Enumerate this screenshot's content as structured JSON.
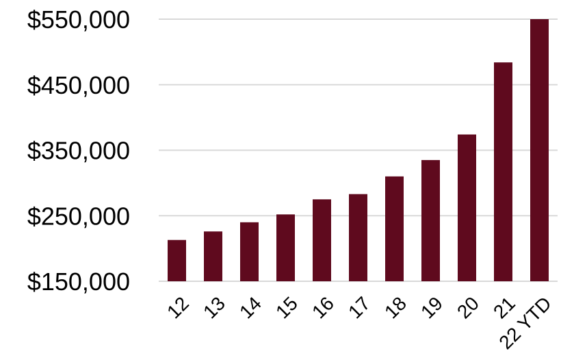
{
  "chart_data": {
    "type": "bar",
    "title": "",
    "xlabel": "",
    "ylabel": "",
    "categories": [
      "12",
      "13",
      "14",
      "15",
      "16",
      "17",
      "18",
      "19",
      "20",
      "21",
      "22 YTD"
    ],
    "values": [
      213000,
      226000,
      240000,
      252000,
      275000,
      283000,
      310000,
      335000,
      374000,
      484000,
      550000
    ],
    "ylim": [
      150000,
      550000
    ],
    "yticks": [
      150000,
      250000,
      350000,
      450000,
      550000
    ],
    "ytick_labels": [
      "$150,000",
      "$250,000",
      "$350,000",
      "$450,000",
      "$550,000"
    ],
    "grid": true,
    "legend": "none",
    "colors": {
      "bar": "#5f0a1e",
      "grid": "#d9d9d9",
      "text": "#000000"
    }
  }
}
